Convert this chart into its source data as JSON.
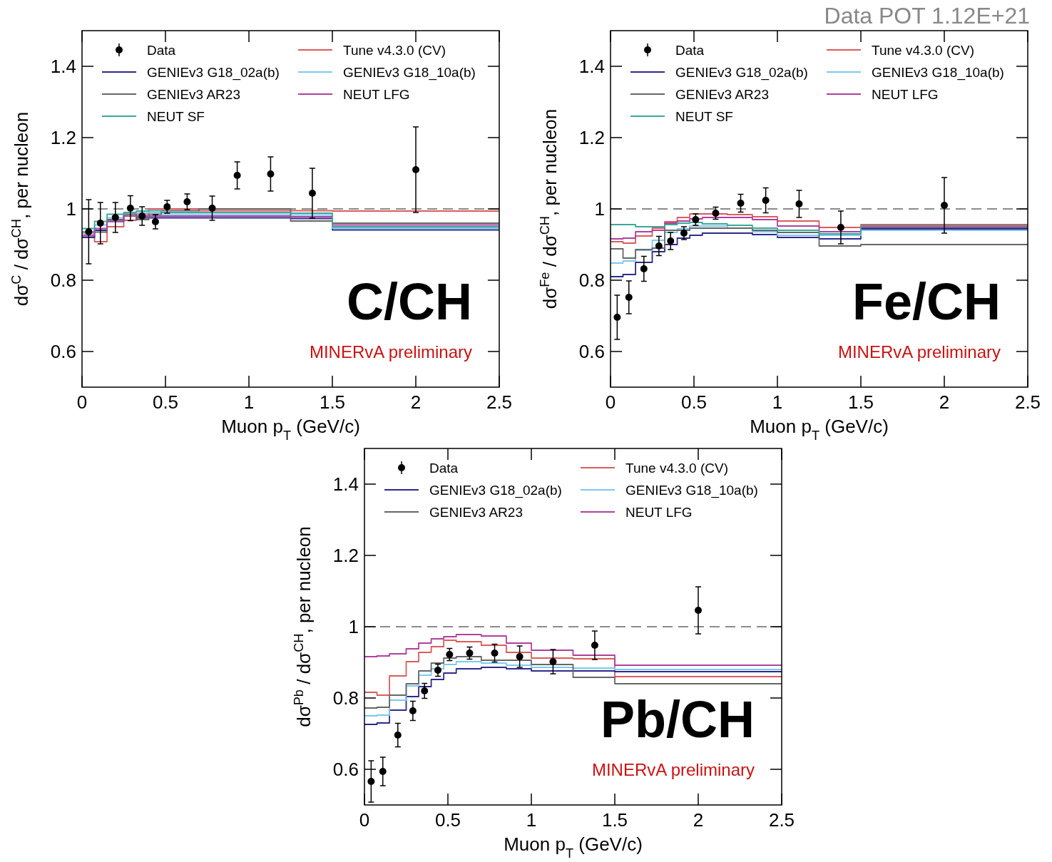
{
  "chart_data": [
    {
      "type": "scatter",
      "ylabel": "dσ$^{C}$ / dσ$^{CH}$, per nucleon",
      "xlabel": "Muon p$_{T}$ (GeV/c)",
      "xlim": [
        0,
        2.5
      ],
      "ylim": [
        0.5,
        1.5
      ],
      "xticks": [
        0,
        0.5,
        1,
        1.5,
        2,
        2.5
      ],
      "yticks": [
        0.6,
        0.8,
        1,
        1.2,
        1.4
      ],
      "legend": "top",
      "grid": false,
      "annotations": [
        "C/CH",
        "MINERvA preliminary",
        "Data POT 1.12E+21"
      ],
      "ref_lines": [
        {
          "axis": "y",
          "value": 1,
          "color": "#666666",
          "line_style": "dashed"
        }
      ],
      "series": [
        {
          "name": "Data",
          "type": "scatter",
          "color": "#000000",
          "marker": "circle",
          "x": [
            0.04,
            0.11,
            0.2,
            0.29,
            0.36,
            0.44,
            0.51,
            0.63,
            0.78,
            0.93,
            1.13,
            1.38,
            2.0
          ],
          "values": [
            0.936,
            0.96,
            0.976,
            1.002,
            0.98,
            0.964,
            1.006,
            1.02,
            1.002,
            1.094,
            1.098,
            1.044,
            1.11
          ],
          "errors": [
            0.09,
            0.058,
            0.042,
            0.035,
            0.026,
            0.02,
            0.018,
            0.022,
            0.034,
            0.038,
            0.048,
            0.07,
            0.12
          ]
        },
        {
          "name": "Tune v4.3.0 (CV)",
          "type": "step",
          "color": "#db5c5c",
          "line_style": "solid",
          "x": [
            0,
            0.075,
            0.15,
            0.25,
            0.325,
            0.4,
            0.475,
            0.55,
            0.7,
            0.85,
            1.0,
            1.25,
            1.5,
            2.5
          ],
          "values": [
            0.925,
            0.908,
            0.95,
            0.968,
            0.985,
            1.0,
            1.0,
            1.0,
            0.995,
            0.995,
            0.995,
            0.995,
            0.994,
            0.994
          ]
        },
        {
          "name": "GENIEv3 G18_02a(b)",
          "type": "step",
          "color": "#2e2a8c",
          "line_style": "solid",
          "x": [
            0,
            0.075,
            0.15,
            0.25,
            0.325,
            0.4,
            0.475,
            0.55,
            0.7,
            0.85,
            1.0,
            1.25,
            1.5,
            2.5
          ],
          "values": [
            0.92,
            0.94,
            0.965,
            0.98,
            0.975,
            0.975,
            0.975,
            0.975,
            0.975,
            0.975,
            0.975,
            0.973,
            0.941,
            0.941
          ]
        },
        {
          "name": "GENIEv3 G18_10a(b)",
          "type": "step",
          "color": "#7ec8f0",
          "line_style": "solid",
          "x": [
            0,
            0.075,
            0.15,
            0.25,
            0.325,
            0.4,
            0.475,
            0.55,
            0.7,
            0.85,
            1.0,
            1.25,
            1.5,
            2.5
          ],
          "values": [
            0.93,
            0.955,
            0.975,
            0.985,
            0.989,
            0.99,
            0.985,
            0.985,
            0.985,
            0.985,
            0.985,
            0.983,
            0.946,
            0.946
          ]
        },
        {
          "name": "GENIEv3 AR23",
          "type": "step",
          "color": "#666666",
          "line_style": "solid",
          "x": [
            0,
            0.075,
            0.15,
            0.25,
            0.325,
            0.4,
            0.475,
            0.55,
            0.7,
            0.85,
            1.0,
            1.25,
            1.5,
            2.5
          ],
          "values": [
            0.935,
            0.935,
            0.97,
            0.985,
            0.97,
            0.985,
            0.995,
            0.995,
            1.0,
            1.0,
            1.0,
            0.966,
            0.96,
            0.96
          ]
        },
        {
          "name": "NEUT LFG",
          "type": "step",
          "color": "#b0409f",
          "line_style": "solid",
          "x": [
            0,
            0.075,
            0.15,
            0.25,
            0.325,
            0.4,
            0.475,
            0.55,
            0.7,
            0.85,
            1.0,
            1.25,
            1.5,
            2.5
          ],
          "values": [
            0.925,
            0.945,
            0.965,
            0.98,
            0.98,
            0.98,
            0.98,
            0.98,
            0.98,
            0.98,
            0.98,
            0.978,
            0.955,
            0.955
          ]
        },
        {
          "name": "NEUT SF",
          "type": "step",
          "color": "#3aa89a",
          "line_style": "solid",
          "x": [
            0,
            0.075,
            0.15,
            0.25,
            0.325,
            0.4,
            0.475,
            0.55,
            0.7,
            0.85,
            1.0,
            1.25,
            1.5,
            2.5
          ],
          "values": [
            0.945,
            0.965,
            0.985,
            0.99,
            0.994,
            0.995,
            0.99,
            0.99,
            0.99,
            0.99,
            0.99,
            0.988,
            0.95,
            0.95
          ]
        }
      ]
    },
    {
      "type": "scatter",
      "ylabel": "dσ$^{Fe}$ / dσ$^{CH}$, per nucleon",
      "xlabel": "Muon p$_{T}$ (GeV/c)",
      "xlim": [
        0,
        2.5
      ],
      "ylim": [
        0.5,
        1.5
      ],
      "xticks": [
        0,
        0.5,
        1,
        1.5,
        2,
        2.5
      ],
      "yticks": [
        0.6,
        0.8,
        1,
        1.2,
        1.4
      ],
      "legend": "top",
      "grid": false,
      "annotations": [
        "Fe/CH",
        "MINERvA preliminary"
      ],
      "ref_lines": [
        {
          "axis": "y",
          "value": 1,
          "color": "#666666",
          "line_style": "dashed"
        }
      ],
      "series": [
        {
          "name": "Data",
          "type": "scatter",
          "color": "#000000",
          "marker": "circle",
          "x": [
            0.04,
            0.11,
            0.2,
            0.29,
            0.36,
            0.44,
            0.51,
            0.63,
            0.78,
            0.93,
            1.13,
            1.38,
            2.0
          ],
          "values": [
            0.696,
            0.752,
            0.832,
            0.896,
            0.91,
            0.932,
            0.97,
            0.988,
            1.016,
            1.024,
            1.014,
            0.948,
            1.01
          ],
          "errors": [
            0.062,
            0.046,
            0.035,
            0.027,
            0.024,
            0.018,
            0.016,
            0.017,
            0.025,
            0.035,
            0.038,
            0.046,
            0.078
          ]
        },
        {
          "name": "Tune v4.3.0 (CV)",
          "type": "step",
          "color": "#db5c5c",
          "line_style": "solid",
          "x": [
            0,
            0.075,
            0.15,
            0.25,
            0.325,
            0.4,
            0.475,
            0.55,
            0.7,
            0.85,
            1.0,
            1.25,
            1.5,
            2.5
          ],
          "values": [
            0.908,
            0.904,
            0.924,
            0.946,
            0.964,
            0.976,
            0.986,
            0.986,
            0.984,
            0.978,
            0.966,
            0.948,
            0.956,
            0.956
          ]
        },
        {
          "name": "GENIEv3 G18_02a(b)",
          "type": "step",
          "color": "#2e2a8c",
          "line_style": "solid",
          "x": [
            0,
            0.075,
            0.15,
            0.25,
            0.325,
            0.4,
            0.475,
            0.55,
            0.7,
            0.85,
            1.0,
            1.25,
            1.5,
            2.5
          ],
          "values": [
            0.81,
            0.816,
            0.85,
            0.88,
            0.9,
            0.918,
            0.926,
            0.932,
            0.932,
            0.928,
            0.92,
            0.916,
            0.944,
            0.944
          ]
        },
        {
          "name": "GENIEv3 G18_10a(b)",
          "type": "step",
          "color": "#7ec8f0",
          "line_style": "solid",
          "x": [
            0,
            0.075,
            0.15,
            0.25,
            0.325,
            0.4,
            0.475,
            0.55,
            0.7,
            0.85,
            1.0,
            1.25,
            1.5,
            2.5
          ],
          "values": [
            0.848,
            0.854,
            0.884,
            0.912,
            0.934,
            0.944,
            0.952,
            0.952,
            0.946,
            0.936,
            0.926,
            0.926,
            0.94,
            0.94
          ]
        },
        {
          "name": "GENIEv3 AR23",
          "type": "step",
          "color": "#666666",
          "line_style": "solid",
          "x": [
            0,
            0.075,
            0.15,
            0.25,
            0.325,
            0.4,
            0.475,
            0.55,
            0.7,
            0.85,
            1.0,
            1.25,
            1.5,
            2.5
          ],
          "values": [
            0.888,
            0.862,
            0.886,
            0.89,
            0.94,
            0.94,
            0.946,
            0.946,
            0.946,
            0.94,
            0.934,
            0.896,
            0.9,
            0.9
          ]
        },
        {
          "name": "NEUT LFG",
          "type": "step",
          "color": "#b0409f",
          "line_style": "solid",
          "x": [
            0,
            0.075,
            0.15,
            0.25,
            0.325,
            0.4,
            0.475,
            0.55,
            0.7,
            0.85,
            1.0,
            1.25,
            1.5,
            2.5
          ],
          "values": [
            0.916,
            0.918,
            0.936,
            0.94,
            0.96,
            0.966,
            0.972,
            0.976,
            0.976,
            0.97,
            0.952,
            0.936,
            0.948,
            0.948
          ]
        },
        {
          "name": "NEUT SF",
          "type": "step",
          "color": "#3aa89a",
          "line_style": "solid",
          "x": [
            0,
            0.075,
            0.15,
            0.25,
            0.325,
            0.4,
            0.475,
            0.55,
            0.7,
            0.85,
            1.0,
            1.25,
            1.5,
            2.5
          ],
          "values": [
            0.956,
            0.956,
            0.95,
            0.95,
            0.956,
            0.96,
            0.962,
            0.958,
            0.954,
            0.946,
            0.94,
            0.93,
            0.952,
            0.952
          ]
        }
      ]
    },
    {
      "type": "scatter",
      "ylabel": "dσ$^{Pb}$ / dσ$^{CH}$, per nucleon",
      "xlabel": "Muon p$_{T}$ (GeV/c)",
      "xlim": [
        0,
        2.5
      ],
      "ylim": [
        0.5,
        1.5
      ],
      "xticks": [
        0,
        0.5,
        1,
        1.5,
        2,
        2.5
      ],
      "yticks": [
        0.6,
        0.8,
        1,
        1.2,
        1.4
      ],
      "legend": "top",
      "grid": false,
      "annotations": [
        "Pb/CH",
        "MINERvA preliminary"
      ],
      "ref_lines": [
        {
          "axis": "y",
          "value": 1,
          "color": "#666666",
          "line_style": "dashed"
        }
      ],
      "series": [
        {
          "name": "Data",
          "type": "scatter",
          "color": "#000000",
          "marker": "circle",
          "x": [
            0.04,
            0.11,
            0.2,
            0.29,
            0.36,
            0.44,
            0.51,
            0.63,
            0.78,
            0.93,
            1.13,
            1.38,
            2.0
          ],
          "values": [
            0.566,
            0.594,
            0.696,
            0.764,
            0.82,
            0.878,
            0.922,
            0.926,
            0.926,
            0.916,
            0.902,
            0.948,
            1.046
          ],
          "errors": [
            0.058,
            0.04,
            0.033,
            0.027,
            0.021,
            0.017,
            0.017,
            0.017,
            0.025,
            0.03,
            0.034,
            0.04,
            0.066
          ]
        },
        {
          "name": "Tune v4.3.0 (CV)",
          "type": "step",
          "color": "#db5c5c",
          "line_style": "solid",
          "x": [
            0,
            0.075,
            0.15,
            0.25,
            0.325,
            0.4,
            0.475,
            0.55,
            0.7,
            0.85,
            1.0,
            1.25,
            1.5,
            2.5
          ],
          "values": [
            0.816,
            0.808,
            0.862,
            0.902,
            0.928,
            0.944,
            0.962,
            0.958,
            0.948,
            0.928,
            0.912,
            0.91,
            0.86,
            0.86
          ]
        },
        {
          "name": "GENIEv3 G18_02a(b)",
          "type": "step",
          "color": "#2e2a8c",
          "line_style": "solid",
          "x": [
            0,
            0.075,
            0.15,
            0.25,
            0.325,
            0.4,
            0.475,
            0.55,
            0.7,
            0.85,
            1.0,
            1.25,
            1.5,
            2.5
          ],
          "values": [
            0.726,
            0.73,
            0.766,
            0.804,
            0.832,
            0.852,
            0.87,
            0.882,
            0.886,
            0.882,
            0.876,
            0.876,
            0.874,
            0.874
          ]
        },
        {
          "name": "GENIEv3 G18_10a(b)",
          "type": "step",
          "color": "#7ec8f0",
          "line_style": "solid",
          "x": [
            0,
            0.075,
            0.15,
            0.25,
            0.325,
            0.4,
            0.475,
            0.55,
            0.7,
            0.85,
            1.0,
            1.25,
            1.5,
            2.5
          ],
          "values": [
            0.75,
            0.752,
            0.794,
            0.834,
            0.864,
            0.882,
            0.894,
            0.902,
            0.898,
            0.892,
            0.886,
            0.884,
            0.88,
            0.88
          ]
        },
        {
          "name": "GENIEv3 AR23",
          "type": "step",
          "color": "#666666",
          "line_style": "solid",
          "x": [
            0,
            0.075,
            0.15,
            0.25,
            0.325,
            0.4,
            0.475,
            0.55,
            0.7,
            0.85,
            1.0,
            1.25,
            1.5,
            2.5
          ],
          "values": [
            0.772,
            0.774,
            0.808,
            0.84,
            0.876,
            0.898,
            0.912,
            0.916,
            0.906,
            0.906,
            0.894,
            0.858,
            0.84,
            0.84
          ]
        },
        {
          "name": "NEUT LFG",
          "type": "step",
          "color": "#b0409f",
          "line_style": "solid",
          "x": [
            0,
            0.075,
            0.15,
            0.25,
            0.325,
            0.4,
            0.475,
            0.55,
            0.7,
            0.85,
            1.0,
            1.25,
            1.5,
            2.5
          ],
          "values": [
            0.916,
            0.918,
            0.924,
            0.938,
            0.954,
            0.966,
            0.972,
            0.978,
            0.974,
            0.954,
            0.934,
            0.92,
            0.892,
            0.892
          ]
        }
      ]
    }
  ]
}
